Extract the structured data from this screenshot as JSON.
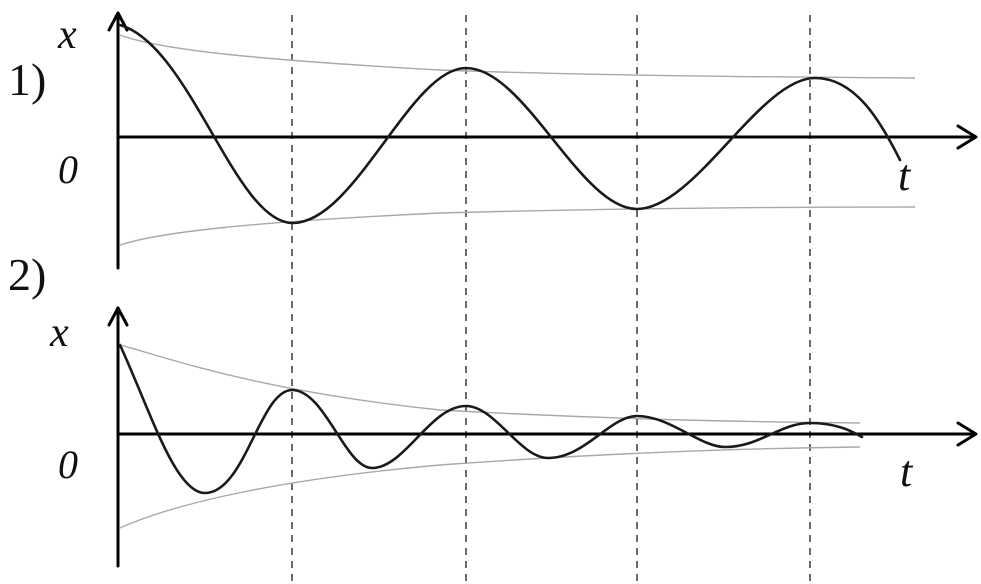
{
  "panels": [
    {
      "number_label": "1)",
      "y_axis_label": "x",
      "origin_label": "0",
      "x_axis_label": "t"
    },
    {
      "number_label": "2)",
      "y_axis_label": "x",
      "origin_label": "0",
      "x_axis_label": "t"
    }
  ],
  "colors": {
    "curve": "#1a1a1a",
    "axis": "#000000",
    "envelope": "#a9a9a9",
    "gridline": "#3a3a3a"
  }
}
